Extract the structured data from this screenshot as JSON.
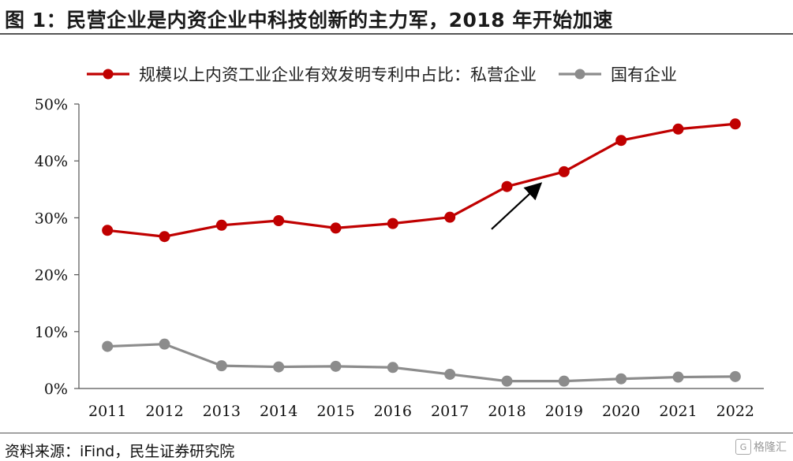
{
  "title": "图 1：民营企业是内资企业中科技创新的主力军，2018 年开始加速",
  "source": "资料来源：iFind，民生证券研究院",
  "watermark": {
    "icon": "gelonghui-logo-icon",
    "text": "格隆汇"
  },
  "chart_data": {
    "type": "line",
    "x": [
      "2011",
      "2012",
      "2013",
      "2014",
      "2015",
      "2016",
      "2017",
      "2018",
      "2019",
      "2020",
      "2021",
      "2022"
    ],
    "series": [
      {
        "name": "规模以上内资工业企业有效发明专利中占比：私营企业",
        "color": "#c00000",
        "values": [
          27.8,
          26.7,
          28.7,
          29.5,
          28.2,
          29.0,
          30.1,
          35.5,
          38.1,
          43.6,
          45.6,
          46.5
        ]
      },
      {
        "name": "国有企业",
        "color": "#8c8c8c",
        "values": [
          7.4,
          7.8,
          4.0,
          3.8,
          3.9,
          3.7,
          2.5,
          1.3,
          1.3,
          1.7,
          2.0,
          2.1
        ]
      }
    ],
    "ylim": [
      0,
      50
    ],
    "yticks": [
      "0%",
      "10%",
      "20%",
      "30%",
      "40%",
      "50%"
    ],
    "legend_position": "top",
    "annotation": {
      "type": "arrow",
      "from": {
        "x": "2017",
        "y": 28.0
      },
      "to": {
        "x": "2018",
        "y": 35.5
      },
      "color": "#000000"
    },
    "grid": false
  }
}
